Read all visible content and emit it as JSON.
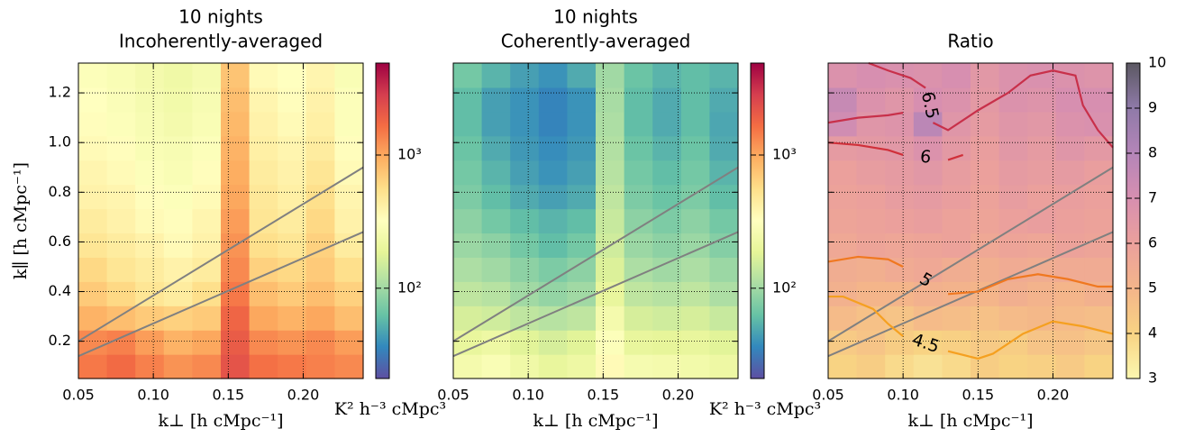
{
  "chart_data": [
    {
      "type": "heatmap",
      "title": [
        "10 nights",
        "Incoherently-averaged"
      ],
      "xlabel": "k⊥ [h cMpc⁻¹]",
      "ylabel": "k∥ [h cMpc⁻¹]",
      "colorbar_label": "K² h⁻³ cMpc³",
      "xlim": [
        0.05,
        0.24
      ],
      "ylim": [
        0.05,
        1.32
      ],
      "xticks": [
        0.05,
        {
          "value": 0.1,
          "label": "0.10"
        },
        0.15,
        {
          "value": 0.2,
          "label": "0.20"
        }
      ],
      "yticks": [
        0.2,
        0.4,
        0.6,
        0.8,
        {
          "value": 1.0,
          "label": "1.0"
        },
        1.2
      ],
      "show_yticklabels": true,
      "grid": true,
      "z": [
        [
          1500,
          1700,
          1400,
          1200,
          1300,
          2200,
          1600,
          1500,
          1400,
          1300
        ],
        [
          1300,
          1400,
          1100,
          900,
          1000,
          2000,
          1300,
          1200,
          1300,
          1100
        ],
        [
          900,
          800,
          700,
          650,
          700,
          1800,
          1000,
          900,
          1000,
          800
        ],
        [
          700,
          600,
          500,
          450,
          550,
          1500,
          800,
          700,
          800,
          650
        ],
        [
          600,
          500,
          450,
          400,
          450,
          1300,
          650,
          600,
          700,
          550
        ],
        [
          500,
          450,
          400,
          350,
          400,
          1200,
          550,
          500,
          650,
          450
        ],
        [
          450,
          400,
          350,
          330,
          380,
          1100,
          500,
          450,
          600,
          400
        ],
        [
          400,
          380,
          330,
          300,
          350,
          1000,
          480,
          420,
          550,
          380
        ],
        [
          380,
          350,
          300,
          280,
          330,
          950,
          450,
          400,
          500,
          350
        ],
        [
          350,
          330,
          280,
          270,
          300,
          900,
          420,
          380,
          450,
          330
        ],
        [
          330,
          300,
          270,
          250,
          280,
          850,
          400,
          350,
          420,
          300
        ],
        [
          320,
          290,
          260,
          240,
          270,
          800,
          380,
          330,
          400,
          300
        ],
        [
          300,
          280,
          250,
          230,
          260,
          750,
          350,
          320,
          380,
          280
        ]
      ],
      "colormap": [
        "#5e4fa2",
        "#3288bd",
        "#66c2a5",
        "#abdda4",
        "#e6f598",
        "#ffffbf",
        "#fee08b",
        "#fdae61",
        "#f46d43",
        "#d53e4f",
        "#9e0142"
      ],
      "clim": [
        21,
        4900
      ],
      "clog": true,
      "cticks": [
        {
          "value": 100,
          "label": "10²"
        },
        {
          "value": 1000,
          "label": "10³"
        }
      ],
      "lines": [
        {
          "color": "#808080",
          "x": [
            0.05,
            0.24
          ],
          "y": [
            0.2,
            0.9
          ]
        },
        {
          "color": "#808080",
          "x": [
            0.05,
            0.24
          ],
          "y": [
            0.14,
            0.64
          ]
        }
      ],
      "contours": []
    },
    {
      "type": "heatmap",
      "title": [
        "10 nights",
        "Coherently-averaged"
      ],
      "xlabel": "k⊥ [h cMpc⁻¹]",
      "colorbar_label": "K² h⁻³ cMpc³",
      "xlim": [
        0.05,
        0.24
      ],
      "ylim": [
        0.05,
        1.32
      ],
      "xticks": [
        0.05,
        {
          "value": 0.1,
          "label": "0.10"
        },
        0.15,
        {
          "value": 0.2,
          "label": "0.20"
        }
      ],
      "yticks": [
        0.2,
        0.4,
        0.6,
        0.8,
        1.0,
        1.2
      ],
      "show_yticklabels": false,
      "grid": true,
      "z": [
        [
          250,
          280,
          230,
          200,
          220,
          350,
          260,
          250,
          240,
          220
        ],
        [
          200,
          220,
          180,
          160,
          180,
          300,
          200,
          190,
          200,
          180
        ],
        [
          160,
          150,
          130,
          120,
          130,
          250,
          160,
          150,
          160,
          140
        ],
        [
          130,
          120,
          100,
          90,
          100,
          200,
          130,
          120,
          130,
          110
        ],
        [
          110,
          100,
          85,
          75,
          85,
          170,
          110,
          100,
          110,
          95
        ],
        [
          95,
          85,
          70,
          60,
          70,
          150,
          95,
          85,
          95,
          80
        ],
        [
          85,
          70,
          60,
          55,
          60,
          140,
          85,
          75,
          85,
          70
        ],
        [
          75,
          60,
          50,
          45,
          50,
          130,
          75,
          65,
          75,
          60
        ],
        [
          70,
          55,
          45,
          40,
          45,
          120,
          70,
          60,
          70,
          55
        ],
        [
          65,
          50,
          42,
          38,
          42,
          115,
          65,
          55,
          65,
          50
        ],
        [
          60,
          45,
          40,
          35,
          40,
          110,
          60,
          50,
          60,
          48
        ],
        [
          60,
          45,
          40,
          35,
          40,
          105,
          60,
          50,
          60,
          50
        ],
        [
          70,
          55,
          45,
          40,
          50,
          100,
          65,
          55,
          60,
          55
        ]
      ],
      "colormap": [
        "#5e4fa2",
        "#3288bd",
        "#66c2a5",
        "#abdda4",
        "#e6f598",
        "#ffffbf",
        "#fee08b",
        "#fdae61",
        "#f46d43",
        "#d53e4f",
        "#9e0142"
      ],
      "clim": [
        21,
        4900
      ],
      "clog": true,
      "cticks": [
        {
          "value": 100,
          "label": "10²"
        },
        {
          "value": 1000,
          "label": "10³"
        }
      ],
      "lines": [
        {
          "color": "#808080",
          "x": [
            0.05,
            0.24
          ],
          "y": [
            0.2,
            0.9
          ]
        },
        {
          "color": "#808080",
          "x": [
            0.05,
            0.24
          ],
          "y": [
            0.14,
            0.64
          ]
        }
      ],
      "contours": []
    },
    {
      "type": "heatmap",
      "title": [
        "Ratio"
      ],
      "xlabel": "k⊥ [h cMpc⁻¹]",
      "xlim": [
        0.05,
        0.24
      ],
      "ylim": [
        0.05,
        1.32
      ],
      "xticks": [
        0.05,
        {
          "value": 0.1,
          "label": "0.10"
        },
        0.15,
        {
          "value": 0.2,
          "label": "0.20"
        }
      ],
      "yticks": [
        0.2,
        0.4,
        0.6,
        0.8,
        1.0,
        1.2
      ],
      "show_yticklabels": false,
      "grid": true,
      "z": [
        [
          4.0,
          4.2,
          3.8,
          3.6,
          3.8,
          4.2,
          4.0,
          4.1,
          4.3,
          4.0
        ],
        [
          4.3,
          4.5,
          4.2,
          4.0,
          4.1,
          4.3,
          4.2,
          4.5,
          4.6,
          4.4
        ],
        [
          4.8,
          4.6,
          4.5,
          4.8,
          4.7,
          4.6,
          4.8,
          4.9,
          4.8,
          4.7
        ],
        [
          5.2,
          5.0,
          5.0,
          5.2,
          5.1,
          5.0,
          5.3,
          5.1,
          5.0,
          5.2
        ],
        [
          5.4,
          5.3,
          5.5,
          5.6,
          5.4,
          5.3,
          5.5,
          5.4,
          5.5,
          5.5
        ],
        [
          5.6,
          5.8,
          5.7,
          5.8,
          5.9,
          5.6,
          5.8,
          5.7,
          5.9,
          5.8
        ],
        [
          5.8,
          5.9,
          6.0,
          6.1,
          5.9,
          5.8,
          6.0,
          6.1,
          6.0,
          5.9
        ],
        [
          5.9,
          6.0,
          6.2,
          6.3,
          6.1,
          5.9,
          6.2,
          6.0,
          6.1,
          6.0
        ],
        [
          6.0,
          6.2,
          6.3,
          6.5,
          6.2,
          6.0,
          6.3,
          6.2,
          6.3,
          6.1
        ],
        [
          6.3,
          6.4,
          6.5,
          6.8,
          6.4,
          6.1,
          6.5,
          6.3,
          6.6,
          6.4
        ],
        [
          7.2,
          6.6,
          6.7,
          7.8,
          6.6,
          6.3,
          6.6,
          6.5,
          6.8,
          6.9
        ],
        [
          7.5,
          6.8,
          6.6,
          7.0,
          6.8,
          6.4,
          6.8,
          6.7,
          7.0,
          7.0
        ],
        [
          6.8,
          7.0,
          6.9,
          6.8,
          7.0,
          6.5,
          6.8,
          6.9,
          6.8,
          6.7
        ]
      ],
      "colormap": [
        "#fbf7b0",
        "#f8d383",
        "#f4b58a",
        "#eba09c",
        "#d78fb0",
        "#b485b8",
        "#8f7aa8",
        "#5b5862"
      ],
      "clim": [
        3,
        10
      ],
      "clog": false,
      "cticks": [
        3,
        4,
        5,
        6,
        7,
        8,
        9,
        10
      ],
      "lines": [
        {
          "color": "#808080",
          "x": [
            0.05,
            0.24
          ],
          "y": [
            0.2,
            0.9
          ]
        },
        {
          "color": "#808080",
          "x": [
            0.05,
            0.24
          ],
          "y": [
            0.14,
            0.64
          ]
        }
      ],
      "contours": [
        {
          "level": 6.5,
          "color": "#c8304a",
          "x": [
            0.077,
            0.09,
            0.105,
            0.115,
            null,
            0.12,
            0.13,
            0.15,
            0.17,
            0.185,
            0.2,
            0.215,
            0.22,
            0.23,
            0.24,
            null,
            0.05,
            0.07,
            0.09,
            0.1
          ],
          "y": [
            1.32,
            1.29,
            1.26,
            1.22,
            null,
            1.08,
            1.05,
            1.13,
            1.2,
            1.27,
            1.29,
            1.27,
            1.15,
            1.05,
            0.98,
            null,
            1.08,
            1.1,
            1.11,
            1.12
          ]
        },
        {
          "level": 6.0,
          "color": "#d0303a",
          "x": [
            0.05,
            0.07,
            0.09,
            0.1,
            null,
            0.13,
            0.14
          ],
          "y": [
            1.0,
            0.99,
            0.97,
            0.95,
            null,
            0.93,
            0.95
          ]
        },
        {
          "level": 5.0,
          "color": "#f07820",
          "x": [
            0.05,
            0.07,
            0.09,
            0.1,
            null,
            0.13,
            0.15,
            0.17,
            0.19,
            0.21,
            0.23,
            0.24
          ],
          "y": [
            0.52,
            0.54,
            0.53,
            0.5,
            null,
            0.39,
            0.4,
            0.45,
            0.47,
            0.45,
            0.42,
            0.42
          ]
        },
        {
          "level": 4.5,
          "color": "#f5a020",
          "x": [
            0.05,
            0.06,
            0.08,
            0.09,
            0.1,
            null,
            0.13,
            0.15,
            0.16,
            0.18,
            0.2,
            0.22,
            0.24
          ],
          "y": [
            0.38,
            0.38,
            0.33,
            0.27,
            0.22,
            null,
            0.16,
            0.13,
            0.15,
            0.23,
            0.28,
            0.26,
            0.23
          ]
        }
      ]
    }
  ]
}
